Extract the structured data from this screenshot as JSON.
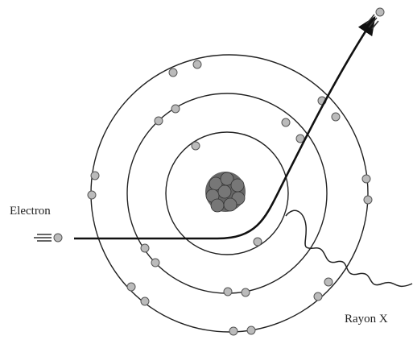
{
  "labels": {
    "electron": "Electron",
    "rayon_x": "Rayon X"
  }
}
